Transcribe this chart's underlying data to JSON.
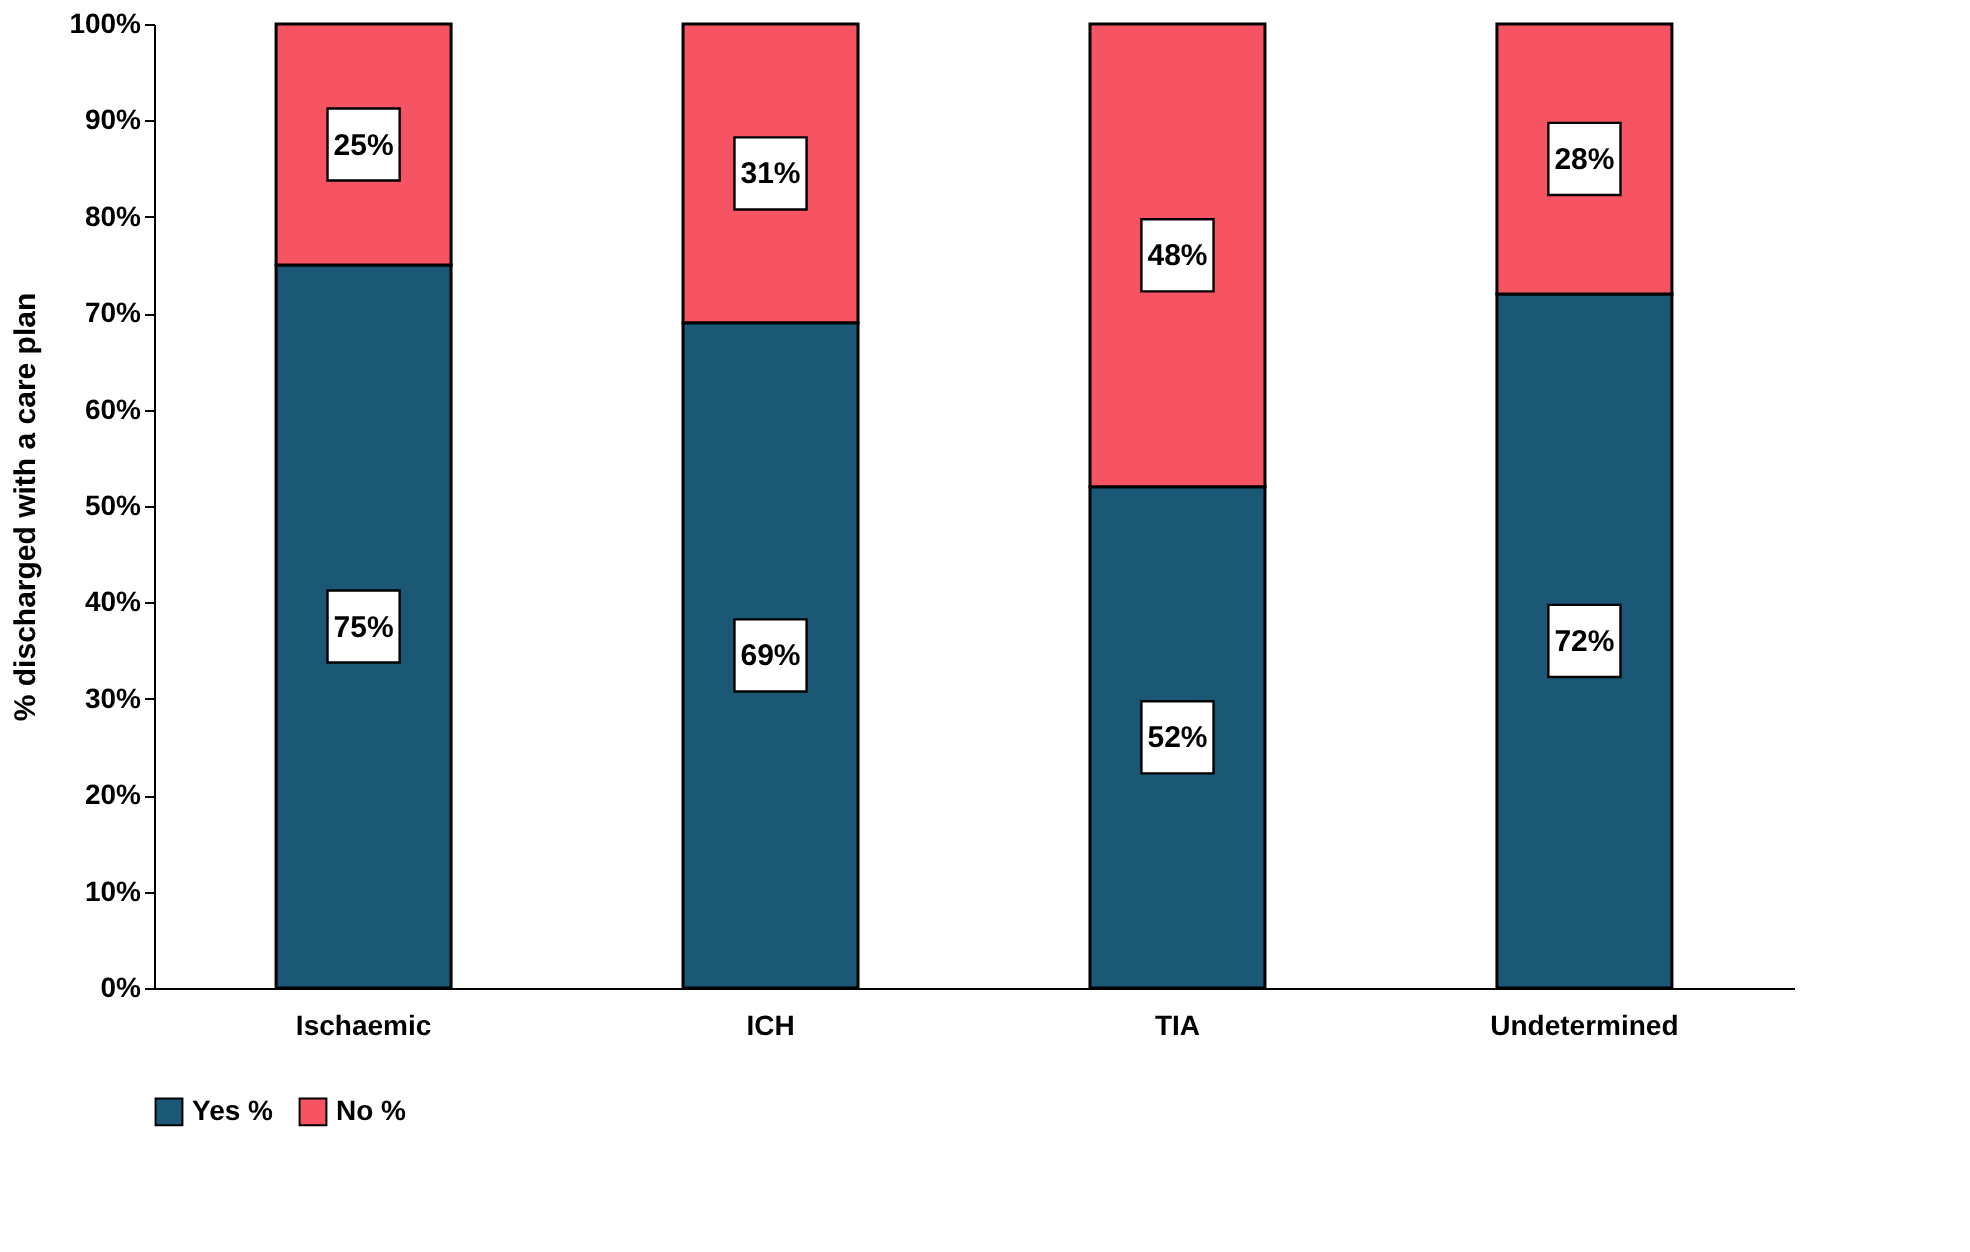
{
  "chart_data": {
    "type": "bar",
    "stacked": true,
    "ylabel": "% discharged with a care plan",
    "categories": [
      "Ischaemic",
      "ICH",
      "TIA",
      "Undetermined"
    ],
    "series": [
      {
        "name": "Yes %",
        "color": "#1a5876",
        "values": [
          75,
          69,
          52,
          72
        ],
        "value_labels": [
          "75%",
          "69%",
          "52%",
          "72%"
        ]
      },
      {
        "name": "No %",
        "color": "#f65462",
        "values": [
          25,
          31,
          48,
          28
        ],
        "value_labels": [
          "25%",
          "31%",
          "48%",
          "28%"
        ]
      }
    ],
    "ylim": [
      0,
      100
    ],
    "yticks": [
      {
        "value": 0,
        "label": "0%"
      },
      {
        "value": 10,
        "label": "10%"
      },
      {
        "value": 20,
        "label": "20%"
      },
      {
        "value": 30,
        "label": "30%"
      },
      {
        "value": 40,
        "label": "40%"
      },
      {
        "value": 50,
        "label": "50%"
      },
      {
        "value": 60,
        "label": "60%"
      },
      {
        "value": 70,
        "label": "70%"
      },
      {
        "value": 80,
        "label": "80%"
      },
      {
        "value": 90,
        "label": "90%"
      },
      {
        "value": 100,
        "label": "100%"
      }
    ],
    "grid": false,
    "legend": "bottom"
  }
}
